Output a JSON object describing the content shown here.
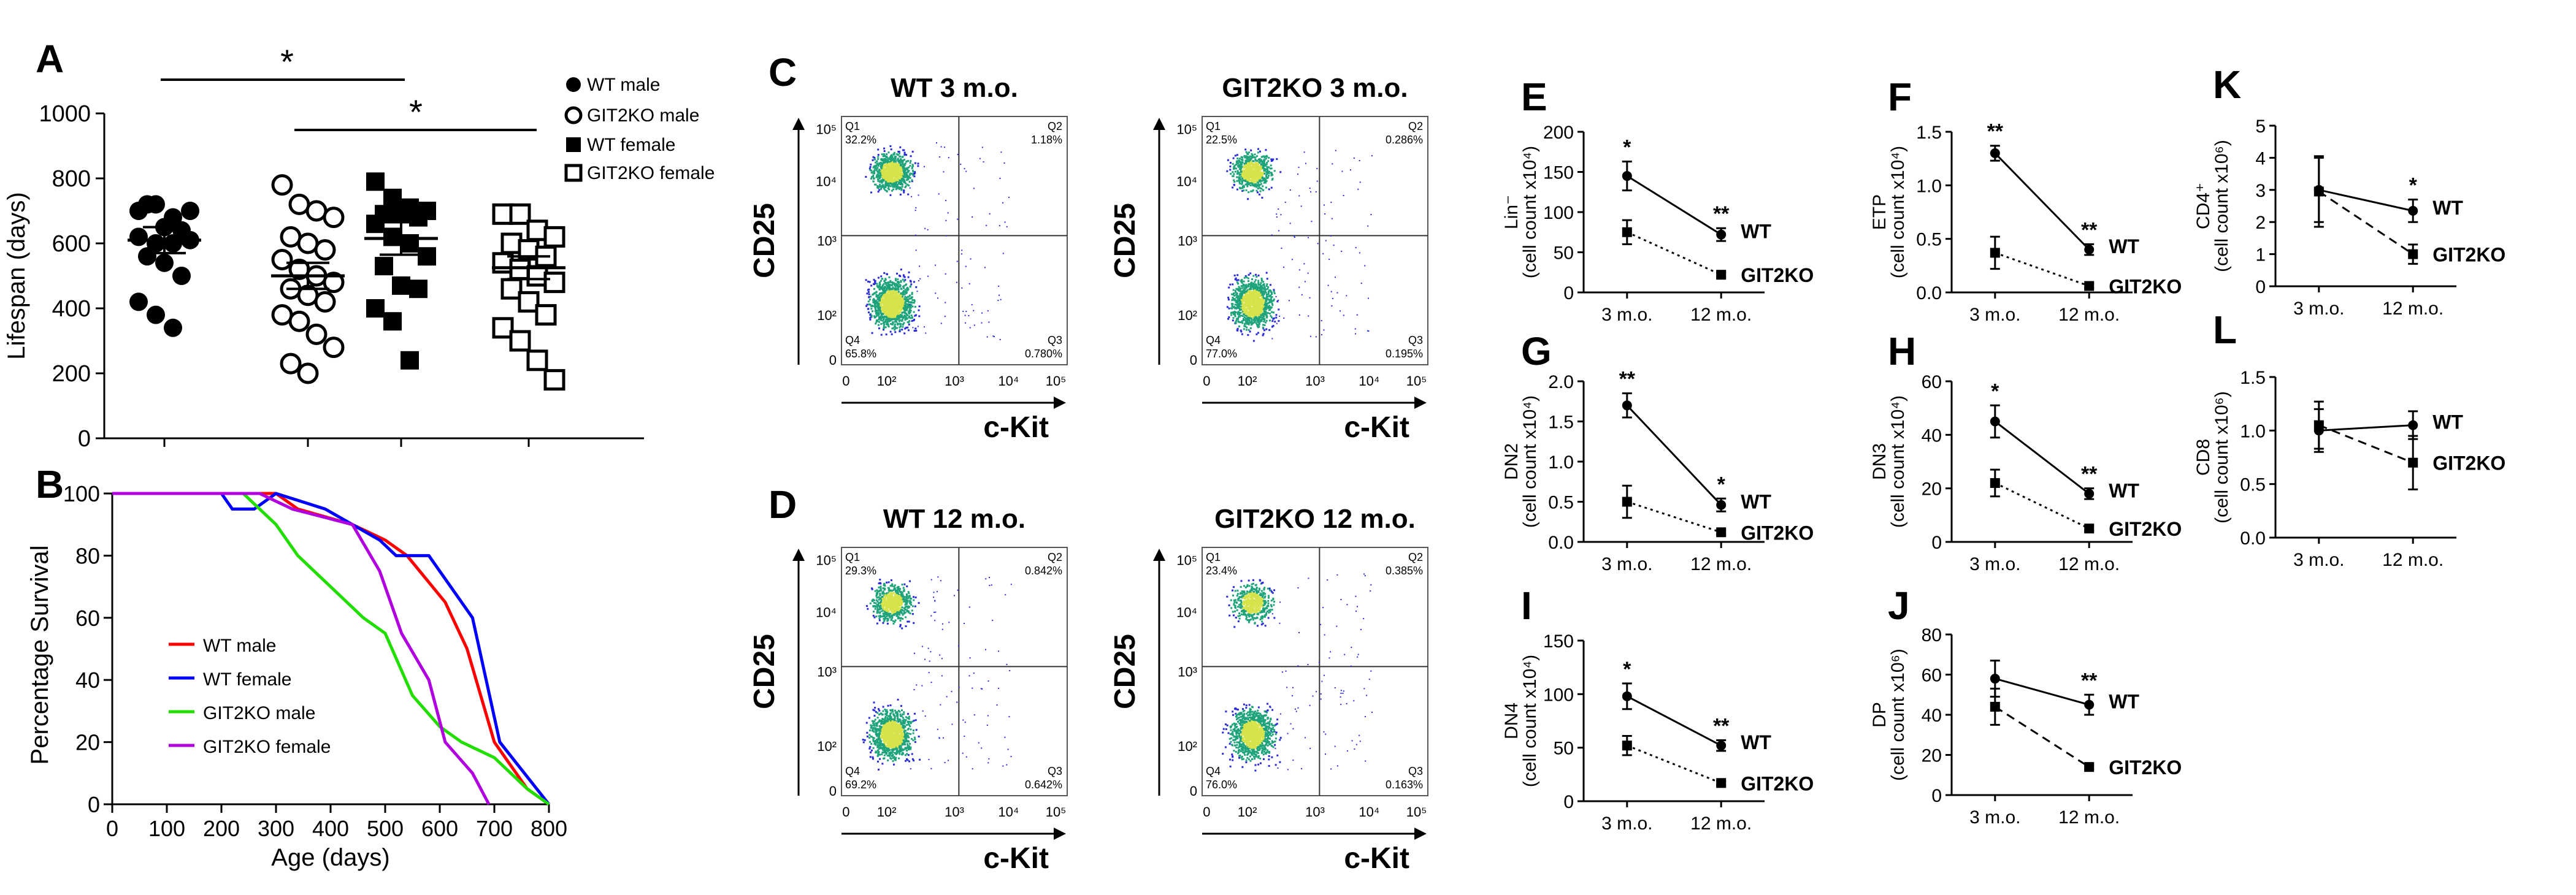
{
  "chart_data": [
    {
      "panel": "A",
      "type": "scatter",
      "categories": [
        "WT male",
        "GIT2KO male",
        "WT female",
        "GIT2KO female"
      ],
      "ylabel": "Lifespan (days)",
      "ylim": [
        0,
        1000
      ],
      "yticks": [
        "0",
        "200",
        "400",
        "600",
        "800",
        "1000"
      ],
      "series": [
        {
          "name": "WT male",
          "marker": "filled-circle",
          "values": [
            700,
            720,
            680,
            700,
            720,
            650,
            640,
            620,
            600,
            600,
            610,
            560,
            540,
            500,
            420,
            380,
            340
          ],
          "mean": 610,
          "sem": 40
        },
        {
          "name": "WT female",
          "marker": "filled-square",
          "values": [
            790,
            740,
            710,
            700,
            690,
            690,
            680,
            660,
            620,
            600,
            560,
            530,
            470,
            460,
            400,
            360,
            240
          ],
          "mean": 615,
          "sem": 50
        },
        {
          "name": "GIT2KO male",
          "marker": "open-circle",
          "values": [
            780,
            720,
            700,
            680,
            620,
            600,
            580,
            550,
            520,
            500,
            480,
            460,
            440,
            420,
            380,
            360,
            320,
            280,
            230,
            200
          ],
          "mean": 500,
          "sem": 40
        },
        {
          "name": "GIT2KO female",
          "marker": "open-square",
          "values": [
            690,
            690,
            640,
            620,
            600,
            580,
            560,
            540,
            520,
            500,
            480,
            460,
            420,
            380,
            340,
            300,
            240,
            180
          ],
          "mean": 525,
          "sem": 35
        }
      ],
      "significance": [
        {
          "between": [
            "WT male",
            "GIT2KO male"
          ],
          "label": "*"
        },
        {
          "between": [
            "WT female",
            "GIT2KO female"
          ],
          "label": "*"
        }
      ],
      "legend": [
        "WT male",
        "GIT2KO male",
        "WT female",
        "GIT2KO female"
      ],
      "legend_position": "right"
    },
    {
      "panel": "B",
      "type": "line",
      "xlabel": "Age (days)",
      "ylabel": "Percentage Survival",
      "xlim": [
        0,
        800
      ],
      "ylim": [
        0,
        100
      ],
      "xticks": [
        "0",
        "100",
        "200",
        "300",
        "400",
        "500",
        "600",
        "700",
        "800"
      ],
      "yticks": [
        "0",
        "20",
        "40",
        "60",
        "80",
        "100"
      ],
      "legend_position": "inside-left",
      "series": [
        {
          "name": "WT male",
          "color": "#ff0000",
          "points": [
            [
              0,
              100
            ],
            [
              300,
              100
            ],
            [
              340,
              95
            ],
            [
              440,
              90
            ],
            [
              500,
              85
            ],
            [
              540,
              80
            ],
            [
              610,
              65
            ],
            [
              650,
              50
            ],
            [
              700,
              20
            ],
            [
              760,
              5
            ],
            [
              800,
              0
            ]
          ]
        },
        {
          "name": "WT female",
          "color": "#0000ff",
          "points": [
            [
              0,
              100
            ],
            [
              200,
              100
            ],
            [
              220,
              95
            ],
            [
              260,
              95
            ],
            [
              300,
              100
            ],
            [
              390,
              95
            ],
            [
              490,
              85
            ],
            [
              520,
              80
            ],
            [
              580,
              80
            ],
            [
              660,
              60
            ],
            [
              710,
              20
            ],
            [
              800,
              0
            ]
          ]
        },
        {
          "name": "GIT2KO male",
          "color": "#22dd00",
          "points": [
            [
              0,
              100
            ],
            [
              240,
              100
            ],
            [
              300,
              90
            ],
            [
              340,
              80
            ],
            [
              400,
              70
            ],
            [
              460,
              60
            ],
            [
              500,
              55
            ],
            [
              550,
              35
            ],
            [
              600,
              25
            ],
            [
              640,
              20
            ],
            [
              700,
              15
            ],
            [
              760,
              5
            ],
            [
              800,
              0
            ]
          ]
        },
        {
          "name": "GIT2KO female",
          "color": "#b000e0",
          "points": [
            [
              0,
              100
            ],
            [
              270,
              100
            ],
            [
              330,
              95
            ],
            [
              440,
              90
            ],
            [
              490,
              75
            ],
            [
              530,
              55
            ],
            [
              580,
              40
            ],
            [
              610,
              20
            ],
            [
              660,
              10
            ],
            [
              690,
              0
            ]
          ]
        }
      ]
    },
    {
      "panel": "C",
      "type": "scatter",
      "xlabel": "c-Kit",
      "ylabel": "CD25",
      "xticks": [
        "0",
        "10²",
        "10³",
        "10⁴",
        "10⁵"
      ],
      "yticks": [
        "0",
        "10²",
        "10³",
        "10⁴",
        "10⁵"
      ],
      "plots": [
        {
          "title": "WT  3 m.o.",
          "Q1": "Q1",
          "Q1v": "32.2%",
          "Q2": "Q2",
          "Q2v": "1.18%",
          "Q3": "Q3",
          "Q3v": "0.780%",
          "Q4": "Q4",
          "Q4v": "65.8%",
          "dense_upper": 1.0
        },
        {
          "title": "GIT2KO  3 m.o.",
          "Q1": "Q1",
          "Q1v": "22.5%",
          "Q2": "Q2",
          "Q2v": "0.286%",
          "Q3": "Q3",
          "Q3v": "0.195%",
          "Q4": "Q4",
          "Q4v": "77.0%",
          "dense_upper": 0.8
        }
      ]
    },
    {
      "panel": "D",
      "type": "scatter",
      "xlabel": "c-Kit",
      "ylabel": "CD25",
      "xticks": [
        "0",
        "10²",
        "10³",
        "10⁴",
        "10⁵"
      ],
      "yticks": [
        "0",
        "10²",
        "10³",
        "10⁴",
        "10⁵"
      ],
      "plots": [
        {
          "title": "WT  12 m.o.",
          "Q1": "Q1",
          "Q1v": "29.3%",
          "Q2": "Q2",
          "Q2v": "0.842%",
          "Q3": "Q3",
          "Q3v": "0.642%",
          "Q4": "Q4",
          "Q4v": "69.2%",
          "dense_upper": 0.75
        },
        {
          "title": "GIT2KO  12 m.o.",
          "Q1": "Q1",
          "Q1v": "23.4%",
          "Q2": "Q2",
          "Q2v": "0.385%",
          "Q3": "Q3",
          "Q3v": "0.163%",
          "Q4": "Q4",
          "Q4v": "76.0%",
          "dense_upper": 0.6
        }
      ]
    },
    {
      "panel": "E",
      "type": "line",
      "categories": [
        "3 m.o.",
        "12 m.o."
      ],
      "ylabel": "Lin⁻",
      "ylabel2": "(cell count x10⁴)",
      "ylim": [
        0,
        200
      ],
      "yticks": [
        "0",
        "50",
        "100",
        "150",
        "200"
      ],
      "series": [
        {
          "name": "WT",
          "values": [
            145,
            72
          ],
          "err": [
            18,
            8
          ],
          "marker": "circle",
          "dash": "solid"
        },
        {
          "name": "GIT2KO",
          "values": [
            75,
            22
          ],
          "err": [
            15,
            3
          ],
          "marker": "square",
          "dash": "dotted"
        }
      ],
      "annotations": [
        "*",
        "**"
      ]
    },
    {
      "panel": "F",
      "type": "line",
      "categories": [
        "3 m.o.",
        "12 m.o."
      ],
      "ylabel": "ETP",
      "ylabel2": "(cell count x10⁴)",
      "ylim": [
        0,
        1.5
      ],
      "yticks": [
        "0.0",
        "0.5",
        "1.0",
        "1.5"
      ],
      "series": [
        {
          "name": "WT",
          "values": [
            1.3,
            0.4
          ],
          "err": [
            0.07,
            0.05
          ],
          "marker": "circle",
          "dash": "solid"
        },
        {
          "name": "GIT2KO",
          "values": [
            0.37,
            0.06
          ],
          "err": [
            0.15,
            0.02
          ],
          "marker": "square",
          "dash": "dotted"
        }
      ],
      "annotations": [
        "**",
        "**"
      ]
    },
    {
      "panel": "G",
      "type": "line",
      "categories": [
        "3 m.o.",
        "12 m.o."
      ],
      "ylabel": "DN2",
      "ylabel2": "(cell count x10⁴)",
      "ylim": [
        0,
        2.0
      ],
      "yticks": [
        "0.0",
        "0.5",
        "1.0",
        "1.5",
        "2.0"
      ],
      "series": [
        {
          "name": "WT",
          "values": [
            1.7,
            0.46
          ],
          "err": [
            0.15,
            0.08
          ],
          "marker": "circle",
          "dash": "solid"
        },
        {
          "name": "GIT2KO",
          "values": [
            0.5,
            0.12
          ],
          "err": [
            0.2,
            0.03
          ],
          "marker": "square",
          "dash": "dotted"
        }
      ],
      "annotations": [
        "**",
        "*"
      ]
    },
    {
      "panel": "H",
      "type": "line",
      "categories": [
        "3 m.o.",
        "12 m.o."
      ],
      "ylabel": "DN3",
      "ylabel2": "(cell count x10⁴)",
      "ylim": [
        0,
        60
      ],
      "yticks": [
        "0",
        "20",
        "40",
        "60"
      ],
      "series": [
        {
          "name": "WT",
          "values": [
            45,
            18
          ],
          "err": [
            6,
            2
          ],
          "marker": "circle",
          "dash": "solid"
        },
        {
          "name": "GIT2KO",
          "values": [
            22,
            5
          ],
          "err": [
            5,
            1
          ],
          "marker": "square",
          "dash": "dotted"
        }
      ],
      "annotations": [
        "*",
        "**"
      ]
    },
    {
      "panel": "I",
      "type": "line",
      "categories": [
        "3 m.o.",
        "12 m.o."
      ],
      "ylabel": "DN4",
      "ylabel2": "(cell count x10⁴)",
      "ylim": [
        0,
        150
      ],
      "yticks": [
        "0",
        "50",
        "100",
        "150"
      ],
      "series": [
        {
          "name": "WT",
          "values": [
            98,
            52
          ],
          "err": [
            12,
            5
          ],
          "marker": "circle",
          "dash": "solid"
        },
        {
          "name": "GIT2KO",
          "values": [
            52,
            17
          ],
          "err": [
            9,
            2
          ],
          "marker": "square",
          "dash": "dotted"
        }
      ],
      "annotations": [
        "*",
        "**"
      ]
    },
    {
      "panel": "J",
      "type": "line",
      "categories": [
        "3 m.o.",
        "12 m.o."
      ],
      "ylabel": "DP",
      "ylabel2": "(cell count x10⁶)",
      "ylim": [
        0,
        80
      ],
      "yticks": [
        "0",
        "20",
        "40",
        "60",
        "80"
      ],
      "series": [
        {
          "name": "WT",
          "values": [
            58,
            45
          ],
          "err": [
            9,
            5
          ],
          "marker": "circle",
          "dash": "solid"
        },
        {
          "name": "GIT2KO",
          "values": [
            44,
            14
          ],
          "err": [
            9,
            1
          ],
          "marker": "square",
          "dash": "dashed"
        }
      ],
      "annotations": [
        "",
        "**"
      ]
    },
    {
      "panel": "K",
      "type": "line",
      "categories": [
        "3 m.o.",
        "12 m.o."
      ],
      "ylabel": "CD4⁺",
      "ylabel2": "(cell count x10⁶)",
      "ylim": [
        0,
        5
      ],
      "yticks": [
        "0",
        "1",
        "2",
        "3",
        "4",
        "5"
      ],
      "series": [
        {
          "name": "WT",
          "values": [
            3.0,
            2.35
          ],
          "err": [
            1.0,
            0.35
          ],
          "marker": "circle",
          "dash": "solid"
        },
        {
          "name": "GIT2KO",
          "values": [
            2.95,
            1.0
          ],
          "err": [
            1.1,
            0.3
          ],
          "marker": "square",
          "dash": "dashed"
        }
      ],
      "annotations": [
        "",
        "*"
      ]
    },
    {
      "panel": "L",
      "type": "line",
      "categories": [
        "3 m.o.",
        "12 m.o."
      ],
      "ylabel": "CD8",
      "ylabel2": "(cell count x10⁶)",
      "ylim": [
        0,
        1.5
      ],
      "yticks": [
        "0.0",
        "0.5",
        "1.0",
        "1.5"
      ],
      "series": [
        {
          "name": "WT",
          "values": [
            1.0,
            1.05
          ],
          "err": [
            0.2,
            0.13
          ],
          "marker": "circle",
          "dash": "solid"
        },
        {
          "name": "GIT2KO",
          "values": [
            1.05,
            0.7
          ],
          "err": [
            0.22,
            0.25
          ],
          "marker": "square",
          "dash": "dashed"
        }
      ],
      "annotations": [
        "",
        ""
      ]
    }
  ],
  "panel_letters": [
    "A",
    "B",
    "C",
    "D",
    "E",
    "F",
    "G",
    "H",
    "I",
    "J",
    "K",
    "L"
  ],
  "colors": {
    "axis": "#000000",
    "flow_low": "#2b2bd8",
    "flow_mid": "#1fa37a",
    "flow_high": "#d6e34a"
  }
}
